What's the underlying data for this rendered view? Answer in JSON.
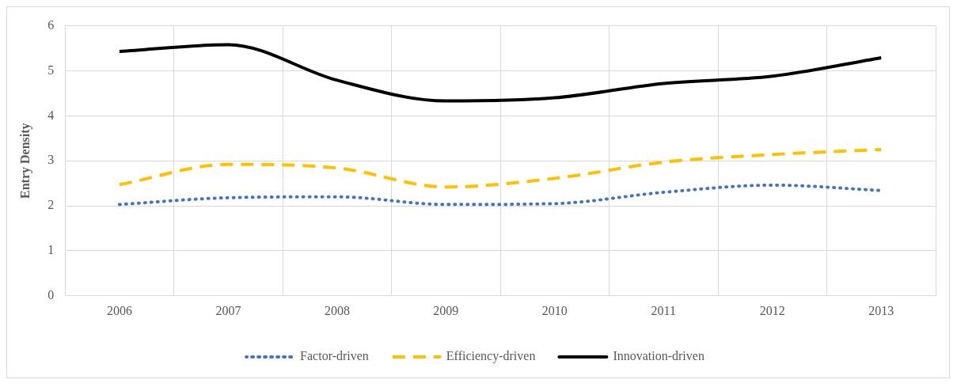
{
  "chart_data": {
    "type": "line",
    "ylabel": "Entry Density",
    "categories": [
      "2006",
      "2007",
      "2008",
      "2009",
      "2010",
      "2011",
      "2012",
      "2013"
    ],
    "series": [
      {
        "name": "Factor-driven",
        "color": "#4472c4",
        "line_style": "dotted",
        "values": [
          2.03,
          2.18,
          2.2,
          2.03,
          2.05,
          2.3,
          2.46,
          2.34
        ]
      },
      {
        "name": "Efficiency-driven",
        "color": "#ffc000",
        "line_style": "dashed",
        "values": [
          2.47,
          2.92,
          2.84,
          2.42,
          2.61,
          2.97,
          3.14,
          3.25
        ]
      },
      {
        "name": "Innovation-driven",
        "color": "#000000",
        "line_style": "solid",
        "values": [
          5.43,
          5.58,
          4.79,
          4.33,
          4.4,
          4.72,
          4.88,
          5.29
        ]
      }
    ],
    "ylim": [
      0,
      6
    ],
    "yticks": [
      0,
      1,
      2,
      3,
      4,
      5,
      6
    ],
    "grid": true,
    "legend": "bottom",
    "marker": "none"
  }
}
